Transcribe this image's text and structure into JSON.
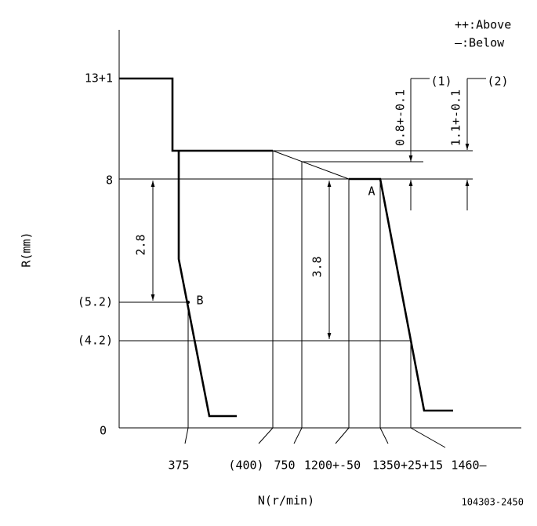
{
  "legend": {
    "above": "++:Above",
    "below": "—:Below"
  },
  "y_axis": {
    "title": "R(mm)",
    "labels": [
      "13+1",
      "8",
      "(5.2)",
      "(4.2)",
      "0"
    ]
  },
  "x_axis": {
    "title": "N(r/min)",
    "labels": [
      "375",
      "(400)",
      "750",
      "1200+-50",
      "1350+25+15",
      "1460—"
    ]
  },
  "points": {
    "a": "A",
    "b": "B"
  },
  "dimensions": {
    "d1": "2.8",
    "d2": "3.8",
    "t1": "0.8+-0.1",
    "t2": "1.1+-0.1",
    "ref1": "(1)",
    "ref2": "(2)"
  },
  "code": "104303-2450"
}
